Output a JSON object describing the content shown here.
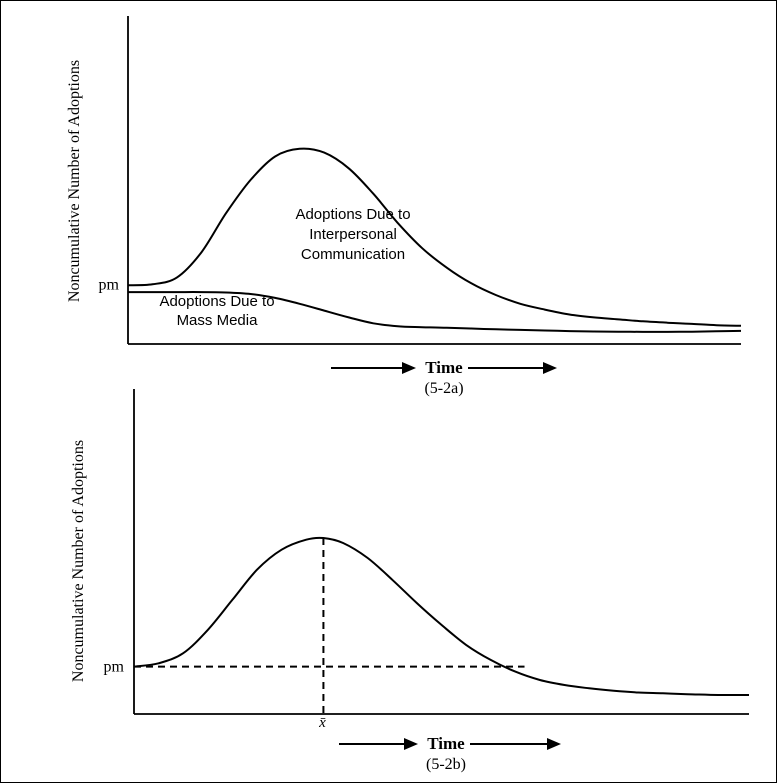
{
  "chart_data": [
    {
      "type": "line",
      "panel": "5-2a",
      "caption": "(5-2a)",
      "xlabel": "Time",
      "ylabel": "Noncumulative Number of Adoptions",
      "y_tick_label": "pm",
      "y_tick_value": 0.255,
      "xlim": [
        0,
        100
      ],
      "ylim": [
        0,
        1
      ],
      "grid": false,
      "legend": "none",
      "annotations": [
        {
          "lines": [
            "Adoptions Due to",
            "Interpersonal",
            "Communication"
          ]
        },
        {
          "lines": [
            "Adoptions Due to",
            "Mass Media"
          ]
        }
      ],
      "series": [
        {
          "key": "total",
          "x": [
            0,
            4,
            8,
            12,
            16,
            20,
            24,
            28,
            32,
            36,
            40,
            44,
            48,
            52,
            56,
            60,
            64,
            68,
            72,
            76,
            80,
            84,
            88,
            92,
            96,
            100
          ],
          "y": [
            0.25,
            0.255,
            0.29,
            0.42,
            0.62,
            0.79,
            0.91,
            0.95,
            0.93,
            0.85,
            0.72,
            0.57,
            0.44,
            0.34,
            0.26,
            0.2,
            0.155,
            0.125,
            0.1,
            0.085,
            0.075,
            0.065,
            0.058,
            0.052,
            0.045,
            0.042
          ]
        },
        {
          "key": "mass_media",
          "x": [
            0,
            4,
            8,
            12,
            16,
            20,
            24,
            28,
            32,
            36,
            40,
            44,
            48,
            52,
            56,
            60,
            64,
            68,
            72,
            76,
            80,
            84,
            88,
            92,
            96,
            100
          ],
          "y": [
            0.215,
            0.215,
            0.215,
            0.215,
            0.213,
            0.205,
            0.185,
            0.155,
            0.12,
            0.085,
            0.055,
            0.04,
            0.035,
            0.032,
            0.028,
            0.024,
            0.021,
            0.018,
            0.015,
            0.013,
            0.012,
            0.011,
            0.011,
            0.012,
            0.014,
            0.016
          ]
        }
      ]
    },
    {
      "type": "line",
      "panel": "5-2b",
      "caption": "(5-2b)",
      "xlabel": "Time",
      "ylabel": "Noncumulative Number of Adoptions",
      "y_tick_label": "pm",
      "y_tick_value": 0.2,
      "xlim": [
        0,
        100
      ],
      "ylim": [
        0,
        1
      ],
      "grid": false,
      "legend": "none",
      "peak_label": "x̄",
      "peak_x": 30.8,
      "pm_line_end_x": 63.5,
      "series": [
        {
          "key": "total",
          "x": [
            0,
            4,
            8,
            12,
            16,
            20,
            24,
            28,
            30.8,
            34,
            38,
            42,
            46,
            50,
            54,
            58,
            62,
            66,
            70,
            74,
            78,
            82,
            86,
            90,
            95,
            100
          ],
          "y": [
            0.2,
            0.22,
            0.28,
            0.42,
            0.6,
            0.78,
            0.9,
            0.96,
            0.97,
            0.94,
            0.85,
            0.72,
            0.58,
            0.45,
            0.33,
            0.24,
            0.17,
            0.12,
            0.09,
            0.07,
            0.055,
            0.045,
            0.04,
            0.035,
            0.03,
            0.03
          ]
        }
      ]
    }
  ]
}
